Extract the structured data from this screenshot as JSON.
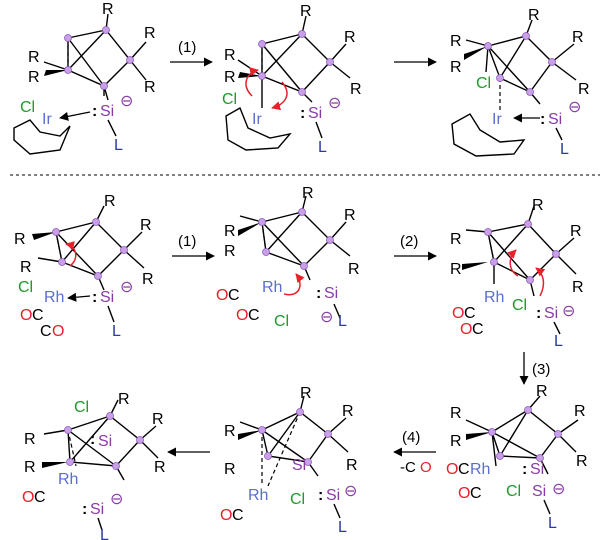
{
  "labels": {
    "r": "R",
    "l": "L",
    "cl": "Cl",
    "si": "Si",
    "ir": "Ir",
    "rh": "Rh",
    "o": "O",
    "c": "C",
    "colon": ":",
    "minus": "⊖"
  },
  "steps": {
    "s1": "(1)",
    "s2": "(2)",
    "s3": "(3)",
    "s4": "(4)",
    "co_loss_prefix": "-C",
    "co_loss_o": "O"
  },
  "colors": {
    "atom": "#c9a0e6",
    "metal": "#5a6fcf",
    "cl": "#1e9a2a",
    "si": "#8a3aa8",
    "l": "#2a3aa0",
    "o": "#e8202a",
    "curly_arrow": "#e8202a"
  }
}
